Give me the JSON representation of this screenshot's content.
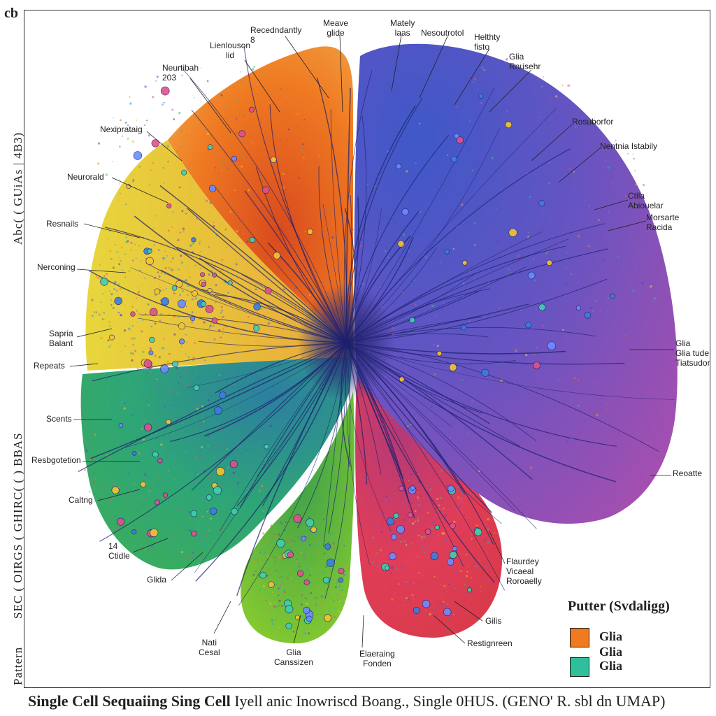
{
  "corner_mark": "cb",
  "side_texts": [
    "Abc( ( GUiAs | 4B3)",
    "SEC ( OIRGS ( GHIRC( ( ) BBAS",
    "Pattern"
  ],
  "caption_bold": "Single Cell Sequaiing Sing Cell",
  "caption_rest": " Iyell anic Inowriscd Boang., Single 0HUS. (GENO' R. sbl dn UMAP)",
  "labels": [
    "Recedndantly\n8",
    "Meave\nglide",
    "Mately\nlaas",
    "Nesoutrotol",
    "Helthty\nfisto",
    "Lienlouson\nlid",
    "Neurtibah\n203",
    "Glia\nRnusehr",
    "Rosuborfor",
    "Nexiprataig",
    "Nentnia Istabily",
    "Neurorald",
    "Ctila\nAbiouelar",
    "Morsarte\nRacida",
    "Resnails",
    "Nerconing",
    "Sapria\nBalant",
    "Glia\nGlia tude\nTiatsudor",
    "Repeats",
    "Scents",
    "Resbgotetion",
    "Reoatte",
    "Caltng",
    "14\nCtidle",
    "Flaurdey\nVicaeal\nRoroaelly",
    "Glida",
    "Gilis",
    "Nati\nCesal",
    "Glia\nCanssizen",
    "Elaeraing\nFonden",
    "Restignreen"
  ],
  "legend": {
    "title": "Putter (Svdaligg)",
    "items": [
      {
        "label": "Glia",
        "color": "#f07a20"
      },
      {
        "label": "Glia",
        "color": "#ffffff"
      },
      {
        "label": "Glia",
        "color": "#2fbf9a"
      }
    ]
  },
  "cluster_colors": {
    "orange": "#ef7a22",
    "yellow": "#e4cf3a",
    "blue": "#4a56c6",
    "purple": "#a44fb0",
    "teal": "#2ea577",
    "lime": "#86cc2c",
    "red": "#e03d58",
    "trajectory": "#1b1f6b"
  }
}
